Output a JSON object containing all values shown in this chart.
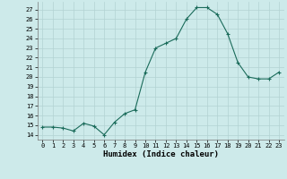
{
  "x": [
    0,
    1,
    2,
    3,
    4,
    5,
    6,
    7,
    8,
    9,
    10,
    11,
    12,
    13,
    14,
    15,
    16,
    17,
    18,
    19,
    20,
    21,
    22,
    23
  ],
  "y": [
    14.8,
    14.8,
    14.7,
    14.4,
    15.2,
    14.9,
    14.0,
    15.3,
    16.2,
    16.6,
    20.5,
    23.0,
    23.5,
    24.0,
    26.0,
    27.2,
    27.2,
    26.5,
    24.5,
    21.5,
    20.0,
    19.8,
    19.8,
    20.5
  ],
  "line_color": "#1a6b5a",
  "marker": "+",
  "marker_size": 3.5,
  "bg_color": "#cdeaea",
  "grid_color": "#b2d2d2",
  "xlabel": "Humidex (Indice chaleur)",
  "xlim": [
    -0.5,
    23.5
  ],
  "ylim": [
    13.5,
    27.8
  ],
  "yticks": [
    14,
    15,
    16,
    17,
    18,
    19,
    20,
    21,
    22,
    23,
    24,
    25,
    26,
    27
  ],
  "xticks": [
    0,
    1,
    2,
    3,
    4,
    5,
    6,
    7,
    8,
    9,
    10,
    11,
    12,
    13,
    14,
    15,
    16,
    17,
    18,
    19,
    20,
    21,
    22,
    23
  ]
}
